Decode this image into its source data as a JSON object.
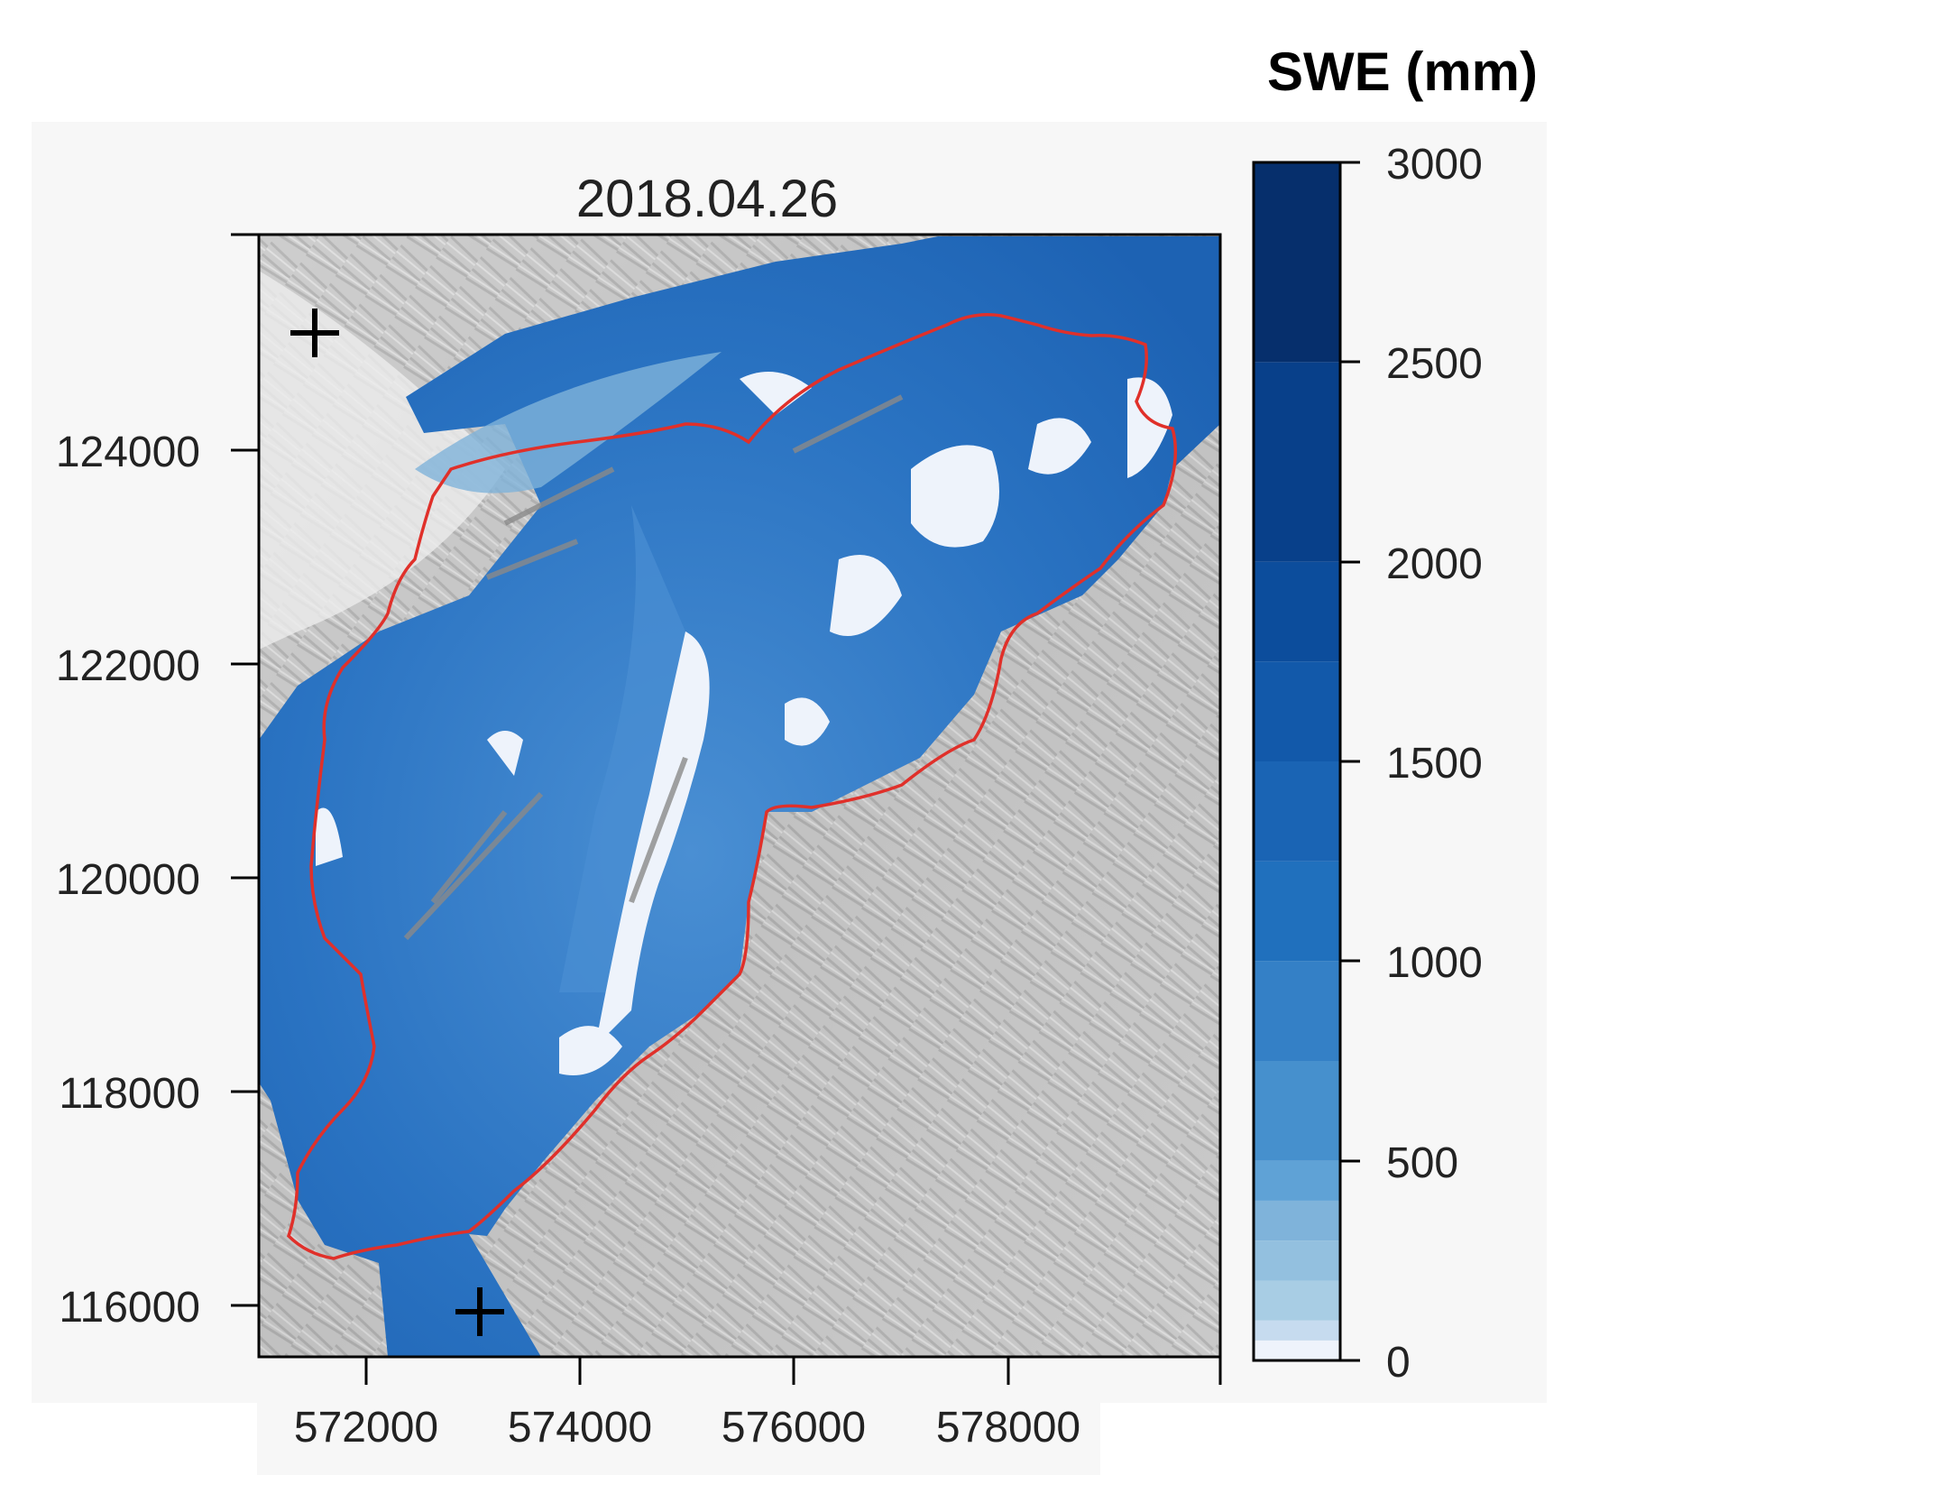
{
  "map": {
    "title": "2018.04.26",
    "x_ticks": [
      "572000",
      "574000",
      "576000",
      "578000"
    ],
    "y_ticks": [
      "124000",
      "122000",
      "120000",
      "118000",
      "116000"
    ],
    "x_range": [
      571000,
      580000
    ],
    "y_range": [
      115500,
      126000
    ],
    "markers": [
      {
        "name": "cross-marker-top-left",
        "x": 571500,
        "y": 125100,
        "symbol": "+"
      },
      {
        "name": "cross-marker-bottom",
        "x": 573050,
        "y": 115960,
        "symbol": "+"
      }
    ],
    "basemap": "hillshade",
    "outline_color": "#e0302a"
  },
  "colorbar": {
    "title": "SWE (mm)",
    "ticks": [
      "3000",
      "2500",
      "2000",
      "1500",
      "1000",
      "500",
      "0"
    ],
    "range": [
      0,
      3000
    ],
    "levels": [
      0,
      50,
      100,
      200,
      300,
      400,
      500,
      750,
      1000,
      1250,
      1500,
      1750,
      2000,
      2500,
      3000
    ],
    "colors": [
      "#eef3fb",
      "#c6dbef",
      "#a8cde4",
      "#93c0df",
      "#7fb3da",
      "#5fa2d6",
      "#4690cd",
      "#3480c6",
      "#2070bd",
      "#1a64b4",
      "#1259aa",
      "#0c4d9c",
      "#08408a",
      "#062f6c"
    ]
  }
}
